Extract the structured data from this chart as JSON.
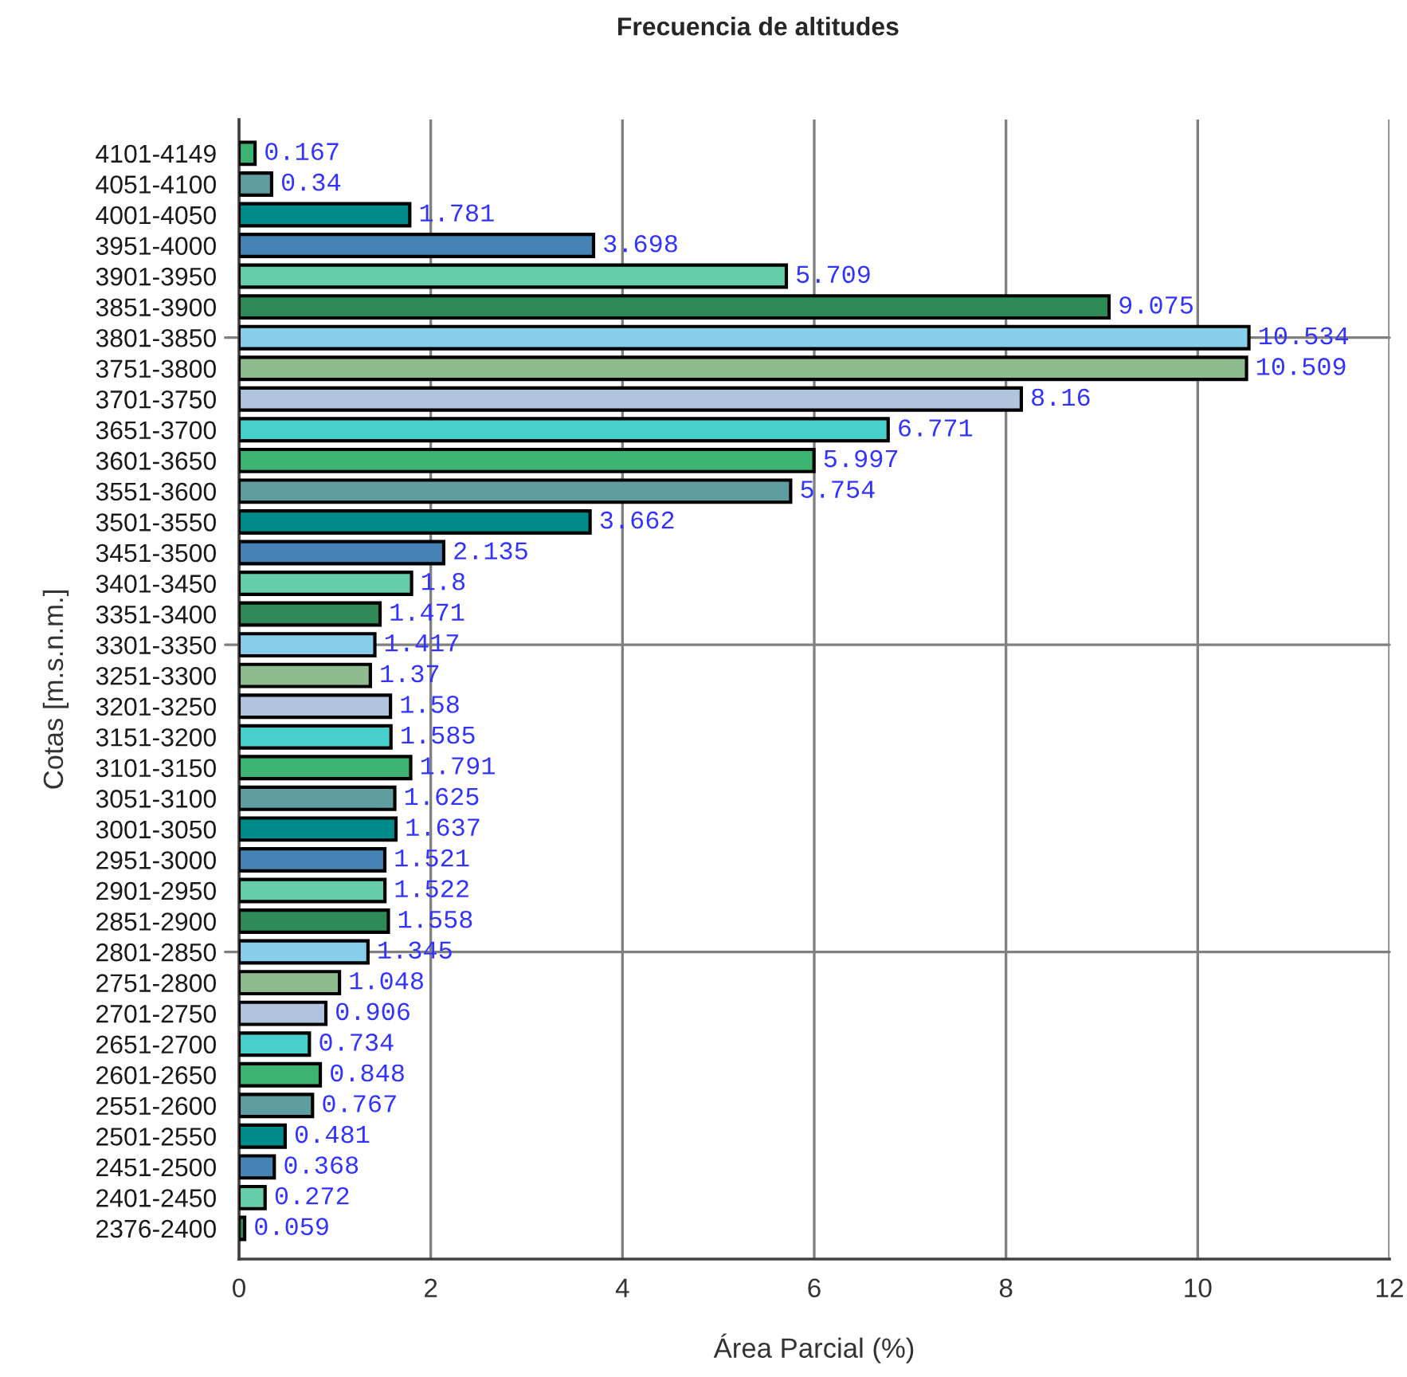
{
  "chart_data": {
    "type": "bar",
    "orientation": "horizontal",
    "title": "Frecuencia de altitudes",
    "xlabel": "Área Parcial (%)",
    "ylabel": "Cotas [m.s.n.m.]",
    "categories": [
      "4101-4149",
      "4051-4100",
      "4001-4050",
      "3951-4000",
      "3901-3950",
      "3851-3900",
      "3801-3850",
      "3751-3800",
      "3701-3750",
      "3651-3700",
      "3601-3650",
      "3551-3600",
      "3501-3550",
      "3451-3500",
      "3401-3450",
      "3351-3400",
      "3301-3350",
      "3251-3300",
      "3201-3250",
      "3151-3200",
      "3101-3150",
      "3051-3100",
      "3001-3050",
      "2951-3000",
      "2901-2950",
      "2851-2900",
      "2801-2850",
      "2751-2800",
      "2701-2750",
      "2651-2700",
      "2601-2650",
      "2551-2600",
      "2501-2550",
      "2451-2500",
      "2401-2450",
      "2376-2400"
    ],
    "values": [
      0.167,
      0.34,
      1.781,
      3.698,
      5.709,
      9.075,
      10.534,
      10.509,
      8.16,
      6.771,
      5.997,
      5.754,
      3.662,
      2.135,
      1.8,
      1.471,
      1.417,
      1.37,
      1.58,
      1.585,
      1.791,
      1.625,
      1.637,
      1.521,
      1.522,
      1.558,
      1.345,
      1.048,
      0.906,
      0.734,
      0.848,
      0.767,
      0.481,
      0.368,
      0.272,
      0.059
    ],
    "colors": [
      "#3cb371",
      "#5f9ea0",
      "#008b8b",
      "#4682b4",
      "#66cdaa",
      "#2e8b57",
      "#87ceeb",
      "#8fbc8f",
      "#b0c4de",
      "#48d1cc",
      "#3cb371",
      "#5f9ea0",
      "#008b8b",
      "#4682b4",
      "#66cdaa",
      "#2e8b57",
      "#87ceeb",
      "#8fbc8f",
      "#b0c4de",
      "#48d1cc",
      "#3cb371",
      "#5f9ea0",
      "#008b8b",
      "#4682b4",
      "#66cdaa",
      "#2e8b57",
      "#87ceeb",
      "#8fbc8f",
      "#b0c4de",
      "#48d1cc",
      "#3cb371",
      "#5f9ea0",
      "#008b8b",
      "#4682b4",
      "#66cdaa",
      "#2e8b57"
    ],
    "xlim": [
      0,
      12
    ],
    "xticks": [
      0,
      2,
      4,
      6,
      8,
      10,
      12
    ],
    "grid": "x",
    "data_labels": true,
    "ref_lines": [
      {
        "axis": "y",
        "value": "3801-3850",
        "color": "#808080"
      },
      {
        "axis": "y",
        "value": "3301-3350",
        "color": "#808080"
      },
      {
        "axis": "y",
        "value": "2801-2850",
        "color": "#808080"
      }
    ]
  }
}
